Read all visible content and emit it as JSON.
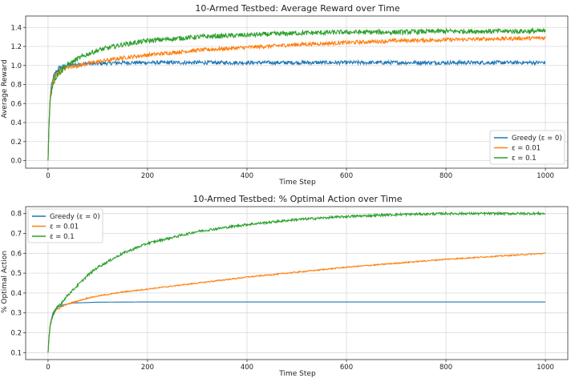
{
  "chart_data": [
    {
      "type": "line",
      "title": "10-Armed Testbed: Average Reward over Time",
      "xlabel": "Time Step",
      "ylabel": "Average Reward",
      "xlim": [
        -45,
        1045
      ],
      "ylim": [
        -0.08,
        1.52
      ],
      "xticks": [
        0,
        200,
        400,
        600,
        800,
        1000
      ],
      "yticks": [
        0.0,
        0.2,
        0.4,
        0.6,
        0.8,
        1.0,
        1.2,
        1.4
      ],
      "ytick_format": 1,
      "grid": true,
      "legend": "bottom-right",
      "series": [
        {
          "name": "Greedy (ε = 0)",
          "color": "#1f77b4",
          "x": [
            0,
            2,
            5,
            10,
            15,
            20,
            30,
            40,
            60,
            80,
            100,
            150,
            200,
            300,
            400,
            500,
            600,
            700,
            800,
            900,
            1000
          ],
          "values": [
            0.0,
            0.4,
            0.72,
            0.86,
            0.92,
            0.96,
            0.99,
            1.0,
            1.01,
            1.02,
            1.02,
            1.03,
            1.03,
            1.03,
            1.03,
            1.03,
            1.03,
            1.03,
            1.03,
            1.03,
            1.03
          ],
          "noise": 0.02
        },
        {
          "name": "ε = 0.01",
          "color": "#ff7f0e",
          "x": [
            0,
            2,
            5,
            10,
            15,
            20,
            30,
            40,
            60,
            80,
            100,
            150,
            200,
            300,
            400,
            500,
            600,
            700,
            800,
            900,
            1000
          ],
          "values": [
            0.0,
            0.4,
            0.7,
            0.84,
            0.89,
            0.93,
            0.96,
            0.98,
            1.0,
            1.02,
            1.04,
            1.08,
            1.11,
            1.16,
            1.19,
            1.22,
            1.24,
            1.26,
            1.27,
            1.28,
            1.29
          ],
          "noise": 0.02
        },
        {
          "name": "ε = 0.1",
          "color": "#2ca02c",
          "x": [
            0,
            2,
            5,
            10,
            15,
            20,
            30,
            40,
            60,
            80,
            100,
            150,
            200,
            300,
            400,
            500,
            600,
            700,
            800,
            900,
            1000
          ],
          "values": [
            0.0,
            0.38,
            0.68,
            0.82,
            0.88,
            0.92,
            0.97,
            1.01,
            1.07,
            1.12,
            1.16,
            1.22,
            1.26,
            1.3,
            1.32,
            1.34,
            1.35,
            1.35,
            1.36,
            1.36,
            1.36
          ],
          "noise": 0.025
        }
      ]
    },
    {
      "type": "line",
      "title": "10-Armed Testbed: % Optimal Action over Time",
      "xlabel": "Time Step",
      "ylabel": "% Optimal Action",
      "xlim": [
        -45,
        1045
      ],
      "ylim": [
        0.065,
        0.835
      ],
      "xticks": [
        0,
        200,
        400,
        600,
        800,
        1000
      ],
      "yticks": [
        0.1,
        0.2,
        0.3,
        0.4,
        0.5,
        0.6,
        0.7,
        0.8
      ],
      "ytick_format": 1,
      "grid": true,
      "legend": "top-left",
      "series": [
        {
          "name": "Greedy (ε = 0)",
          "color": "#1f77b4",
          "x": [
            0,
            2,
            5,
            10,
            15,
            20,
            30,
            50,
            80,
            100,
            200,
            300,
            400,
            500,
            600,
            700,
            800,
            900,
            1000
          ],
          "values": [
            0.1,
            0.18,
            0.25,
            0.3,
            0.32,
            0.33,
            0.34,
            0.35,
            0.352,
            0.354,
            0.355,
            0.355,
            0.355,
            0.355,
            0.355,
            0.355,
            0.355,
            0.355,
            0.355
          ],
          "noise": 0.0
        },
        {
          "name": "ε = 0.01",
          "color": "#ff7f0e",
          "x": [
            0,
            2,
            5,
            10,
            15,
            20,
            30,
            40,
            60,
            80,
            100,
            150,
            200,
            300,
            400,
            500,
            600,
            700,
            800,
            900,
            1000
          ],
          "values": [
            0.1,
            0.18,
            0.25,
            0.29,
            0.31,
            0.32,
            0.335,
            0.345,
            0.36,
            0.375,
            0.385,
            0.405,
            0.42,
            0.45,
            0.48,
            0.505,
            0.53,
            0.55,
            0.57,
            0.585,
            0.6
          ],
          "noise": 0.003
        },
        {
          "name": "ε = 0.1",
          "color": "#2ca02c",
          "x": [
            0,
            2,
            5,
            10,
            15,
            20,
            30,
            40,
            60,
            80,
            100,
            150,
            200,
            250,
            300,
            400,
            500,
            600,
            700,
            800,
            900,
            1000
          ],
          "values": [
            0.1,
            0.18,
            0.25,
            0.29,
            0.31,
            0.33,
            0.36,
            0.39,
            0.44,
            0.49,
            0.53,
            0.6,
            0.65,
            0.68,
            0.71,
            0.745,
            0.77,
            0.785,
            0.795,
            0.8,
            0.8,
            0.8
          ],
          "noise": 0.006
        }
      ]
    }
  ]
}
